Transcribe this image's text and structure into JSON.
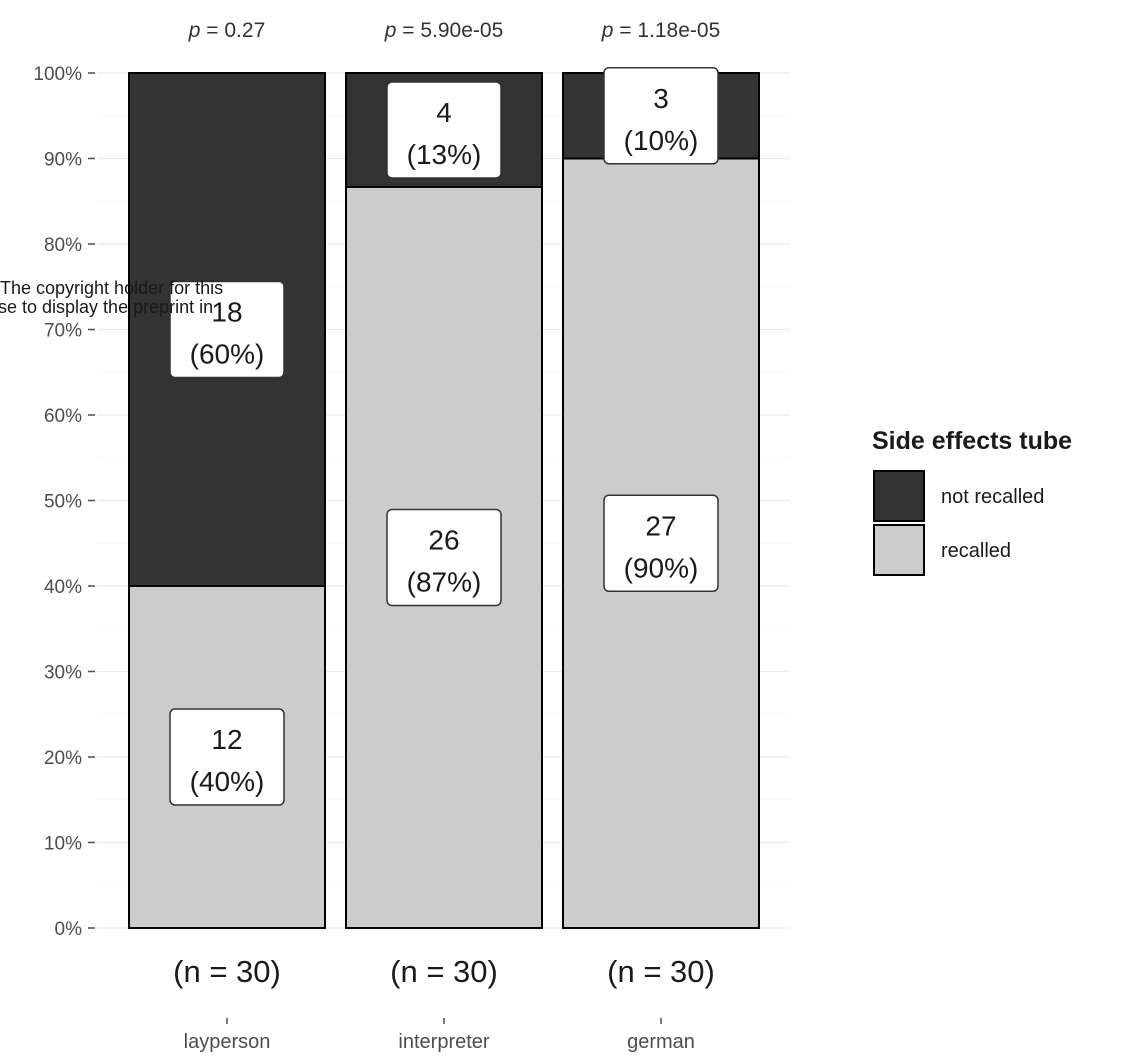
{
  "chart_data": {
    "type": "bar",
    "stacked": true,
    "categories": [
      "layperson",
      "interpreter",
      "german"
    ],
    "category_counts": [
      "(n = 30)",
      "(n = 30)",
      "(n = 30)"
    ],
    "p_values": [
      "= 0.27",
      "= 5.90e-05",
      "= 1.18e-05"
    ],
    "p_symbol": "p",
    "series": [
      {
        "name": "not recalled",
        "values": [
          60,
          13.33,
          10
        ],
        "counts": [
          18,
          4,
          3
        ],
        "labels": [
          "(60%)",
          "(13%)",
          "(10%)"
        ],
        "color": "#333333"
      },
      {
        "name": "recalled",
        "values": [
          40,
          86.67,
          90
        ],
        "counts": [
          12,
          26,
          27
        ],
        "labels": [
          "(40%)",
          "(87%)",
          "(90%)"
        ],
        "color": "#cccccc"
      }
    ],
    "ylim": [
      0,
      100
    ],
    "yticks": [
      0,
      10,
      20,
      30,
      40,
      50,
      60,
      70,
      80,
      90,
      100
    ],
    "ytick_labels": [
      "0%",
      "10%",
      "20%",
      "30%",
      "40%",
      "50%",
      "60%",
      "70%",
      "80%",
      "90%",
      "100%"
    ],
    "legend": {
      "title": "Side effects tube",
      "position": "right",
      "entries": [
        "not recalled",
        "recalled"
      ]
    },
    "grid": true,
    "xlabel": "",
    "ylabel": ""
  },
  "overlay_text": {
    "line1": "The copyright holder for this",
    "line2": "se to display the preprint in"
  }
}
